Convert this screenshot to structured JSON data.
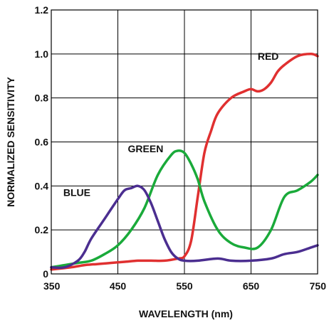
{
  "chart_data": {
    "type": "line",
    "title": "",
    "xlabel": "WAVELENGTH (nm)",
    "ylabel": "NORMALIZED SENSITIVITY",
    "xlim": [
      350,
      750
    ],
    "ylim": [
      0,
      1.2
    ],
    "x_ticks": [
      "350",
      "450",
      "550",
      "650",
      "750"
    ],
    "y_ticks": [
      "0",
      "0.2",
      "0.4",
      "0.6",
      "0.8",
      "1.0",
      "1.2"
    ],
    "grid": true,
    "legend": "none",
    "series": [
      {
        "name": "RED",
        "color": "#e03030",
        "x": [
          350,
          380,
          400,
          420,
          440,
          460,
          480,
          500,
          520,
          540,
          550,
          560,
          570,
          580,
          590,
          600,
          620,
          640,
          650,
          660,
          670,
          680,
          690,
          700,
          720,
          740,
          750
        ],
        "y": [
          0.02,
          0.03,
          0.04,
          0.045,
          0.05,
          0.055,
          0.06,
          0.06,
          0.06,
          0.07,
          0.08,
          0.15,
          0.35,
          0.55,
          0.65,
          0.73,
          0.8,
          0.83,
          0.84,
          0.83,
          0.84,
          0.87,
          0.92,
          0.95,
          0.99,
          1.0,
          0.99
        ]
      },
      {
        "name": "GREEN",
        "color": "#1aaa3a",
        "x": [
          350,
          370,
          390,
          410,
          430,
          450,
          470,
          490,
          510,
          530,
          540,
          550,
          560,
          570,
          580,
          600,
          620,
          640,
          660,
          680,
          700,
          720,
          740,
          750
        ],
        "y": [
          0.03,
          0.04,
          0.05,
          0.06,
          0.09,
          0.13,
          0.2,
          0.3,
          0.45,
          0.54,
          0.56,
          0.55,
          0.5,
          0.43,
          0.33,
          0.2,
          0.14,
          0.12,
          0.12,
          0.2,
          0.35,
          0.38,
          0.42,
          0.45
        ]
      },
      {
        "name": "BLUE",
        "color": "#4b2e90",
        "x": [
          350,
          370,
          390,
          400,
          410,
          430,
          450,
          460,
          470,
          480,
          490,
          500,
          510,
          520,
          530,
          540,
          550,
          570,
          600,
          620,
          650,
          680,
          700,
          720,
          740,
          750
        ],
        "y": [
          0.03,
          0.03,
          0.06,
          0.1,
          0.16,
          0.25,
          0.34,
          0.38,
          0.39,
          0.4,
          0.38,
          0.32,
          0.24,
          0.16,
          0.1,
          0.07,
          0.06,
          0.06,
          0.07,
          0.06,
          0.06,
          0.07,
          0.09,
          0.1,
          0.12,
          0.13
        ]
      }
    ],
    "annotations": [
      {
        "text": "RED",
        "x": 660,
        "y": 0.99
      },
      {
        "text": "GREEN",
        "x": 465,
        "y": 0.57
      },
      {
        "text": "BLUE",
        "x": 368,
        "y": 0.37
      }
    ]
  }
}
